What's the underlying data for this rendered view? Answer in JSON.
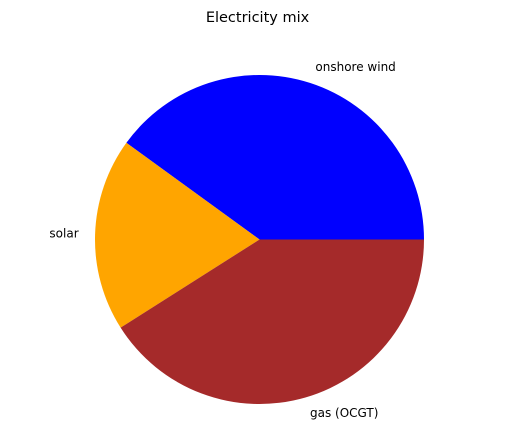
{
  "chart_data": {
    "type": "pie",
    "title": "Electricity mix",
    "labels": [
      "onshore wind",
      "solar",
      "gas (OCGT)"
    ],
    "values": [
      0.4,
      0.19,
      0.41
    ],
    "colors": [
      "#0000ff",
      "#ffa500",
      "#a52a2a"
    ],
    "start_angle_deg": 0,
    "direction": "counterclockwise",
    "legend": "none"
  }
}
